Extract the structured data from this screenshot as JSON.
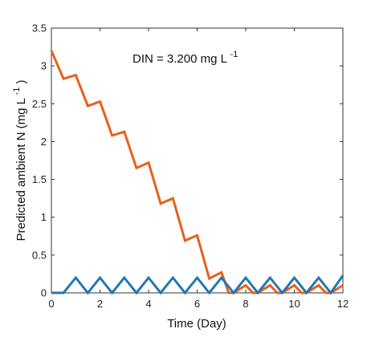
{
  "chart_data": {
    "type": "line",
    "xlabel": "Time (Day)",
    "ylabel_main": "Predicted ambient N (mg L",
    "ylabel_sup": "-1",
    "ylabel_close": ")",
    "annotation_main": "DIN = 3.200 mg L",
    "annotation_sup": "-1",
    "xlim": [
      0,
      12
    ],
    "ylim": [
      0,
      3.5
    ],
    "xticks": [
      0,
      2,
      4,
      6,
      8,
      10,
      12
    ],
    "yticks": [
      0,
      0.5,
      1,
      1.5,
      2,
      2.5,
      3,
      3.5
    ],
    "xtick_labels": [
      "0",
      "2",
      "4",
      "6",
      "8",
      "10",
      "12"
    ],
    "ytick_labels": [
      "0",
      "0.5",
      "1",
      "1.5",
      "2",
      "2.5",
      "3",
      "3.5"
    ],
    "grid": false,
    "series": [
      {
        "color": "#E8601C",
        "points": [
          [
            0,
            3.2
          ],
          [
            0.5,
            2.83
          ],
          [
            1,
            2.88
          ],
          [
            1.5,
            2.47
          ],
          [
            2,
            2.53
          ],
          [
            2.5,
            2.08
          ],
          [
            3,
            2.13
          ],
          [
            3.5,
            1.65
          ],
          [
            4,
            1.72
          ],
          [
            4.5,
            1.18
          ],
          [
            5,
            1.25
          ],
          [
            5.5,
            0.69
          ],
          [
            6,
            0.76
          ],
          [
            6.5,
            0.19
          ],
          [
            7,
            0.27
          ],
          [
            7.3,
            0.0
          ],
          [
            7.5,
            0.0
          ],
          [
            8,
            0.1
          ],
          [
            8.3,
            0.0
          ],
          [
            8.5,
            0.0
          ],
          [
            9,
            0.1
          ],
          [
            9.3,
            0.0
          ],
          [
            9.5,
            0.0
          ],
          [
            10,
            0.1
          ],
          [
            10.3,
            0.0
          ],
          [
            10.5,
            0.0
          ],
          [
            11,
            0.1
          ],
          [
            11.3,
            0.0
          ],
          [
            11.5,
            0.0
          ],
          [
            12,
            0.1
          ]
        ]
      },
      {
        "color": "#1F77B4",
        "points": [
          [
            0,
            0.0
          ],
          [
            0.5,
            0.0
          ],
          [
            1,
            0.2
          ],
          [
            1.5,
            0.0
          ],
          [
            2,
            0.2
          ],
          [
            2.5,
            0.0
          ],
          [
            3,
            0.2
          ],
          [
            3.5,
            0.0
          ],
          [
            4,
            0.2
          ],
          [
            4.5,
            0.0
          ],
          [
            5,
            0.2
          ],
          [
            5.5,
            0.0
          ],
          [
            6,
            0.2
          ],
          [
            6.5,
            0.0
          ],
          [
            7,
            0.2
          ],
          [
            7.5,
            0.0
          ],
          [
            8,
            0.2
          ],
          [
            8.5,
            0.0
          ],
          [
            9,
            0.2
          ],
          [
            9.5,
            0.0
          ],
          [
            10,
            0.2
          ],
          [
            10.5,
            0.0
          ],
          [
            11,
            0.2
          ],
          [
            11.5,
            0.0
          ],
          [
            12,
            0.23
          ]
        ]
      }
    ]
  }
}
